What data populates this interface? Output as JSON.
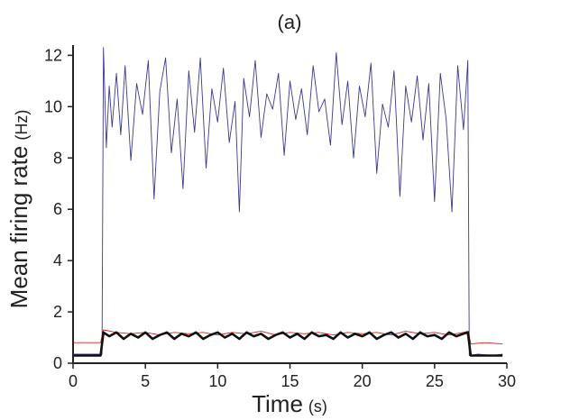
{
  "chart_data": {
    "type": "line",
    "title": "(a)",
    "xlabel": "Time",
    "xlabel_unit": "(s)",
    "ylabel": "Mean firing rate",
    "ylabel_unit": "(Hz)",
    "xlim": [
      0,
      30
    ],
    "ylim": [
      0,
      12.4
    ],
    "xticks": [
      0,
      5,
      10,
      15,
      20,
      25,
      30
    ],
    "yticks": [
      0,
      2,
      4,
      6,
      8,
      10,
      12
    ],
    "grid": false,
    "legend": "none",
    "series": [
      {
        "color": "#3a3a8c",
        "style": "thin",
        "x": [
          0,
          2,
          2.1,
          2.3,
          2.5,
          2.7,
          3,
          3.3,
          3.6,
          4,
          4.4,
          4.8,
          5.2,
          5.6,
          6,
          6.4,
          6.8,
          7.2,
          7.6,
          8,
          8.4,
          8.8,
          9.2,
          9.6,
          10,
          10.4,
          10.8,
          11.2,
          11.5,
          11.8,
          12.2,
          12.6,
          13,
          13.4,
          13.8,
          14.2,
          14.6,
          15,
          15.4,
          15.8,
          16.2,
          16.6,
          17,
          17.4,
          17.8,
          18.2,
          18.6,
          19,
          19.4,
          19.8,
          20.2,
          20.6,
          21,
          21.4,
          21.8,
          22.2,
          22.6,
          23,
          23.4,
          23.8,
          24.2,
          24.6,
          25,
          25.4,
          25.8,
          26.2,
          26.6,
          27,
          27.3,
          27.4,
          28,
          29,
          29.7
        ],
        "y": [
          0.35,
          0.35,
          12.3,
          8.4,
          10.8,
          9.2,
          11.3,
          8.9,
          11.6,
          7.9,
          10.9,
          9.7,
          11.8,
          6.4,
          10.6,
          11.9,
          8.2,
          10.3,
          6.8,
          11.4,
          9.0,
          11.9,
          7.6,
          10.7,
          9.4,
          11.5,
          8.6,
          10.2,
          5.9,
          11.1,
          9.6,
          11.8,
          8.8,
          10.5,
          9.9,
          11.3,
          8.1,
          11.0,
          9.5,
          10.7,
          8.9,
          11.6,
          9.8,
          10.3,
          8.5,
          12.1,
          9.3,
          11.0,
          8.0,
          10.8,
          9.6,
          11.7,
          7.4,
          10.1,
          9.2,
          11.4,
          6.5,
          10.8,
          9.4,
          11.2,
          8.7,
          10.9,
          6.3,
          11.3,
          9.5,
          5.9,
          11.6,
          9.1,
          11.8,
          0.3,
          0.35,
          0.3,
          0.35
        ]
      },
      {
        "color": "#d62020",
        "style": "thin",
        "x": [
          0,
          1.9,
          2.1,
          3,
          4,
          5,
          6,
          7,
          8,
          9,
          10,
          11,
          12,
          13,
          14,
          15,
          16,
          17,
          18,
          19,
          20,
          21,
          22,
          23,
          24,
          25,
          26,
          27,
          27.35,
          27.5,
          28.5,
          29.7
        ],
        "y": [
          0.8,
          0.8,
          1.3,
          1.2,
          1.15,
          1.2,
          1.1,
          1.2,
          1.15,
          1.2,
          1.1,
          1.2,
          1.15,
          1.25,
          1.1,
          1.2,
          1.15,
          1.2,
          1.1,
          1.2,
          1.15,
          1.2,
          1.1,
          1.25,
          1.15,
          1.2,
          1.1,
          1.2,
          1.25,
          0.75,
          0.8,
          0.75
        ]
      },
      {
        "color": "#111111",
        "style": "thick",
        "x": [
          0,
          1.9,
          2.1,
          2.5,
          3,
          3.5,
          4,
          4.5,
          5,
          5.5,
          6,
          6.5,
          7,
          7.5,
          8,
          8.5,
          9,
          9.5,
          10,
          10.5,
          11,
          11.5,
          12,
          12.5,
          13,
          13.5,
          14,
          14.5,
          15,
          15.5,
          16,
          16.5,
          17,
          17.5,
          18,
          18.5,
          19,
          19.5,
          20,
          20.5,
          21,
          21.5,
          22,
          22.5,
          23,
          23.5,
          24,
          24.5,
          25,
          25.5,
          26,
          26.5,
          27,
          27.3,
          27.5,
          28.5,
          29.7
        ],
        "y": [
          0.3,
          0.3,
          1.2,
          1.05,
          1.2,
          0.95,
          1.15,
          1.0,
          1.2,
          0.95,
          1.1,
          1.2,
          0.95,
          1.15,
          1.05,
          1.2,
          0.95,
          1.1,
          1.2,
          1.0,
          1.15,
          0.95,
          1.2,
          1.05,
          1.15,
          0.95,
          1.1,
          1.2,
          1.0,
          1.15,
          0.95,
          1.2,
          1.05,
          1.1,
          0.95,
          1.2,
          1.0,
          1.15,
          1.05,
          1.2,
          0.95,
          1.1,
          1.2,
          1.0,
          1.15,
          0.95,
          1.2,
          1.05,
          1.1,
          0.95,
          1.2,
          1.05,
          1.15,
          1.2,
          0.3,
          0.3,
          0.3
        ]
      }
    ]
  }
}
